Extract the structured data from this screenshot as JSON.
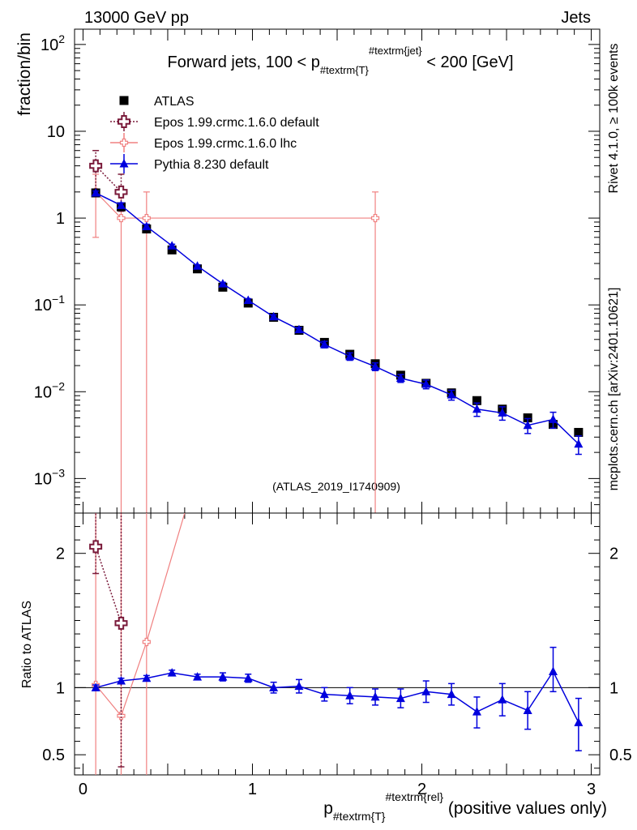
{
  "header": {
    "left": "13000 GeV pp",
    "right": "Jets"
  },
  "side_labels": {
    "rivet": "Rivet 4.1.0, ≥ 100k events",
    "mcplots": "mcplots.cern.ch [arXiv:2401.10621]"
  },
  "watermark": "(ATLAS_2019_I1740909)",
  "colors": {
    "atlas": "#000000",
    "epos_default": "#7a1a3a",
    "epos_lhc": "#f08080",
    "pythia": "#0000dd"
  },
  "chart_data": [
    {
      "type": "scatter",
      "panel": "main",
      "title": {
        "pre": "Forward jets, 100 < p",
        "sub": "#textrm{T}",
        "sup": "#textrm{jet}",
        "post": " < 200 [GeV]"
      },
      "ylabel": "fraction/bin",
      "yscale": "log",
      "xlim": [
        -0.05,
        3.05
      ],
      "ylim": [
        0.0004,
        150
      ],
      "ytick_labels": [
        {
          "value": 100,
          "base": "10",
          "exp": "2"
        },
        {
          "value": 10,
          "base": "10",
          "exp": ""
        },
        {
          "value": 1,
          "base": "1",
          "exp": ""
        },
        {
          "value": 0.1,
          "base": "10",
          "exp": "−1"
        },
        {
          "value": 0.01,
          "base": "10",
          "exp": "−2"
        },
        {
          "value": 0.001,
          "base": "10",
          "exp": "−3"
        }
      ],
      "legend": [
        {
          "key": "atlas",
          "label": "ATLAS"
        },
        {
          "key": "epos_default",
          "label": "Epos 1.99.crmc.1.6.0 default"
        },
        {
          "key": "epos_lhc",
          "label": "Epos 1.99.crmc.1.6.0 lhc"
        },
        {
          "key": "pythia",
          "label": "Pythia 8.230 default"
        }
      ],
      "series": [
        {
          "key": "atlas",
          "name": "ATLAS",
          "x": [
            0.075,
            0.225,
            0.375,
            0.525,
            0.675,
            0.825,
            0.975,
            1.125,
            1.275,
            1.425,
            1.575,
            1.725,
            1.875,
            2.025,
            2.175,
            2.325,
            2.475,
            2.625,
            2.775,
            2.925
          ],
          "y": [
            1.95,
            1.35,
            0.75,
            0.43,
            0.26,
            0.16,
            0.105,
            0.072,
            0.051,
            0.037,
            0.027,
            0.021,
            0.0155,
            0.0125,
            0.0097,
            0.0079,
            0.0063,
            0.005,
            0.0042,
            0.0034
          ]
        },
        {
          "key": "epos_default",
          "name": "Epos 1.99.crmc.1.6.0 default",
          "x": [
            0.075,
            0.225
          ],
          "y": [
            4.0,
            2.0
          ],
          "err_lo": [
            1.8,
            1.2
          ],
          "err_hi": [
            6.0,
            3.2
          ]
        },
        {
          "key": "epos_lhc",
          "name": "Epos 1.99.crmc.1.6.0 lhc",
          "x": [
            0.075,
            0.225,
            0.375,
            1.725
          ],
          "y": [
            2.0,
            1.0,
            1.0,
            1.0
          ],
          "err_lo": [
            0.6,
            0.0001,
            0.0001,
            0.0001
          ],
          "err_hi": [
            3.2,
            2.0,
            2.0,
            2.0
          ]
        },
        {
          "key": "pythia",
          "name": "Pythia 8.230 default",
          "x": [
            0.075,
            0.225,
            0.375,
            0.525,
            0.675,
            0.825,
            0.975,
            1.125,
            1.275,
            1.425,
            1.575,
            1.725,
            1.875,
            2.025,
            2.175,
            2.325,
            2.475,
            2.625,
            2.775,
            2.925
          ],
          "y": [
            1.95,
            1.4,
            0.8,
            0.48,
            0.28,
            0.175,
            0.113,
            0.073,
            0.052,
            0.035,
            0.0255,
            0.0195,
            0.0143,
            0.0122,
            0.0092,
            0.0063,
            0.0057,
            0.0041,
            0.0048,
            0.0025
          ],
          "err_lo": [
            1.85,
            1.3,
            0.75,
            0.46,
            0.27,
            0.168,
            0.108,
            0.069,
            0.049,
            0.032,
            0.023,
            0.0175,
            0.0128,
            0.0108,
            0.008,
            0.0052,
            0.0047,
            0.0033,
            0.0038,
            0.0019
          ],
          "err_hi": [
            2.05,
            1.5,
            0.85,
            0.5,
            0.29,
            0.182,
            0.118,
            0.077,
            0.055,
            0.038,
            0.028,
            0.0215,
            0.0158,
            0.0136,
            0.0104,
            0.0074,
            0.0067,
            0.0049,
            0.0058,
            0.0031
          ]
        }
      ]
    },
    {
      "type": "scatter",
      "panel": "ratio",
      "ylabel": "Ratio to ATLAS",
      "xlabel": {
        "pre": "p",
        "sub": "#textrm{T}",
        "sup": "#textrm{rel}",
        "post": " (positive values only)"
      },
      "xlim": [
        -0.05,
        3.05
      ],
      "ylim": [
        0.35,
        2.3
      ],
      "xtick_labels": [
        "0",
        "1",
        "2",
        "3"
      ],
      "ytick_labels": [
        "0.5",
        "1",
        "2"
      ],
      "series": [
        {
          "key": "epos_default",
          "x": [
            0.075,
            0.225
          ],
          "y": [
            2.05,
            1.48
          ],
          "err_lo": [
            1.85,
            0.41
          ],
          "err_hi": [
            2.3,
            2.3
          ]
        },
        {
          "key": "epos_lhc",
          "x": [
            0.075,
            0.225,
            0.375,
            0.6
          ],
          "y": [
            1.02,
            0.79,
            1.34,
            2.3
          ],
          "err_lo": [
            0.35,
            0.35,
            0.35,
            2.3
          ],
          "err_hi": [
            2.3,
            2.3,
            2.3,
            2.3
          ]
        },
        {
          "key": "pythia",
          "x": [
            0.075,
            0.225,
            0.375,
            0.525,
            0.675,
            0.825,
            0.975,
            1.125,
            1.275,
            1.425,
            1.575,
            1.725,
            1.875,
            2.025,
            2.175,
            2.325,
            2.475,
            2.625,
            2.775,
            2.925
          ],
          "y": [
            1.0,
            1.05,
            1.07,
            1.11,
            1.08,
            1.08,
            1.07,
            1.0,
            1.01,
            0.95,
            0.94,
            0.93,
            0.92,
            0.97,
            0.95,
            0.82,
            0.91,
            0.83,
            1.12,
            0.74
          ],
          "err_lo": [
            0.98,
            1.03,
            1.05,
            1.09,
            1.06,
            1.05,
            1.04,
            0.96,
            0.96,
            0.9,
            0.88,
            0.87,
            0.85,
            0.89,
            0.87,
            0.7,
            0.79,
            0.69,
            0.97,
            0.53
          ],
          "err_hi": [
            1.02,
            1.07,
            1.09,
            1.13,
            1.1,
            1.11,
            1.1,
            1.04,
            1.06,
            1.0,
            1.0,
            0.99,
            0.99,
            1.05,
            1.03,
            0.93,
            1.03,
            0.97,
            1.3,
            0.92
          ]
        }
      ]
    }
  ]
}
